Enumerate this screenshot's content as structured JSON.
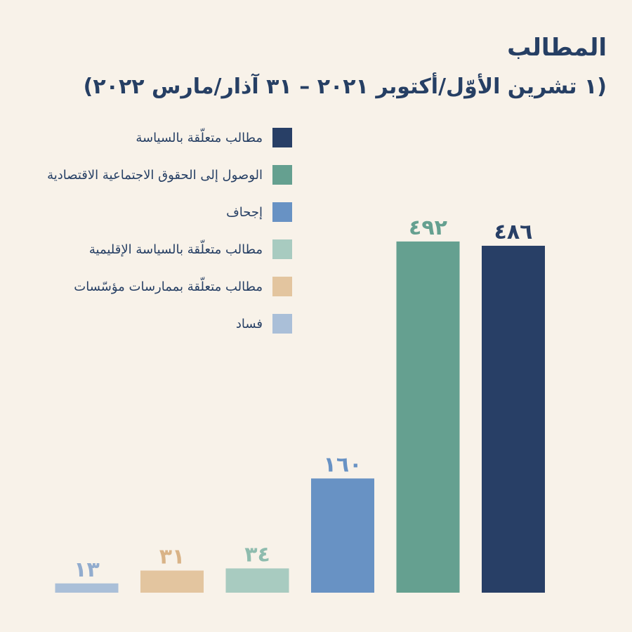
{
  "chart_data": {
    "type": "bar",
    "title": "المطالب",
    "subtitle": "(١ تشرين الأوّل/أكتوبر ٢٠٢١  –  ٣١ آذار/مارس ٢٠٢٢)",
    "ylim": [
      0,
      500
    ],
    "grid": false,
    "legend_placement": "top-left",
    "series": [
      {
        "name": "مطالب متعلّقة بالسياسة",
        "value": 486,
        "label": "٤٨٦",
        "color": "#283f66",
        "label_color": "#283f66"
      },
      {
        "name": "الوصول إلى الحقوق الاجتماعية الاقتصادية",
        "value": 492,
        "label": "٤٩٢",
        "color": "#65a090",
        "label_color": "#65a090"
      },
      {
        "name": "إجحاف",
        "value": 160,
        "label": "١٦٠",
        "color": "#6892c4",
        "label_color": "#6892c4"
      },
      {
        "name": "مطالب متعلّقة بالسياسة الإقليمية",
        "value": 34,
        "label": "٣٤",
        "color": "#a8cbc0",
        "label_color": "#8fbcae"
      },
      {
        "name": "مطالب متعلّقة بممارسات مؤسّسات",
        "value": 31,
        "label": "٣١",
        "color": "#e3c59f",
        "label_color": "#d9b387"
      },
      {
        "name": "فساد",
        "value": 13,
        "label": "١٣",
        "color": "#aabfd8",
        "label_color": "#92acce"
      }
    ]
  }
}
